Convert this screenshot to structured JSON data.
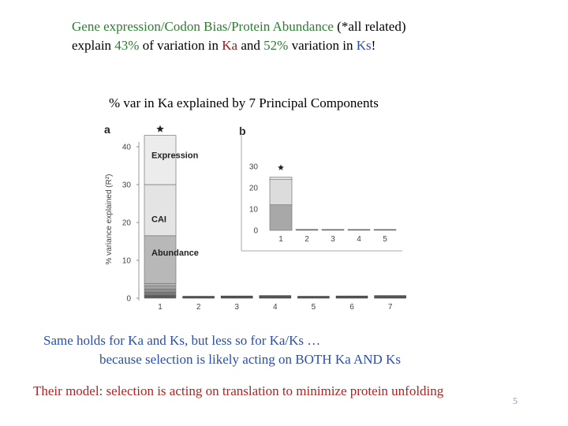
{
  "slide": {
    "line1": {
      "a": "Gene expression/Codon Bias/Protein Abundance",
      "b": " (*all related)"
    },
    "line2": {
      "a": "explain ",
      "b": "43%",
      "c": " of variation in ",
      "d": "Ka",
      "e": " and ",
      "f": "52%",
      "g": " variation in ",
      "h": "Ks",
      "i": "!"
    },
    "chart_heading": "% var in Ka explained by 7 Principal Components",
    "bottom1": "Same holds for Ka and Ks, but less so for Ka/Ks …",
    "bottom2": "because selection is likely acting on BOTH Ka AND Ks",
    "conclusion": "Their model:  selection is acting on translation to minimize protein unfolding",
    "page_number": "5",
    "colors": {
      "green": "#2e7d32",
      "blue": "#2b4fa8",
      "darkred": "#8b1a1a",
      "red": "#b22222"
    }
  },
  "chart_data": [
    {
      "type": "bar",
      "panel_label": "a",
      "ylabel": "% variance explained (R²)",
      "ylim": [
        0,
        40
      ],
      "yticks": [
        "0",
        "10",
        "20",
        "30",
        "40"
      ],
      "categories": [
        "1",
        "2",
        "3",
        "4",
        "5",
        "6",
        "7"
      ],
      "values": [
        43,
        0.5,
        0.6,
        0.7,
        0.5,
        0.6,
        0.7
      ],
      "star_on": "1",
      "stack_pc1": [
        {
          "name": "Abundance",
          "value": 16.5,
          "color": "#b8b8b8"
        },
        {
          "name": "CAI",
          "value": 13.5,
          "color": "#e4e4e4"
        },
        {
          "name": "Expression",
          "value": 13,
          "color": "#ececec"
        }
      ],
      "bottom_bands": [
        0.8,
        0.8,
        0.8,
        0.8,
        0.7
      ],
      "bottom_band_colors": [
        "#5a5a5a",
        "#7a7a7a",
        "#8f8f8f",
        "#a3a3a3",
        "#b0b0b0"
      ]
    },
    {
      "type": "bar",
      "panel_label": "b",
      "ylim": [
        0,
        35
      ],
      "yticks": [
        "0",
        "10",
        "20",
        "30"
      ],
      "categories": [
        "1",
        "2",
        "3",
        "4",
        "5"
      ],
      "values": [
        25,
        0.5,
        0.4,
        0.4,
        0.4
      ],
      "star_on": "1",
      "stack_pc1": [
        {
          "name": "",
          "value": 12,
          "color": "#a8a8a8"
        },
        {
          "name": "",
          "value": 12,
          "color": "#dcdcdc"
        },
        {
          "name": "",
          "value": 1,
          "color": "#ececec"
        }
      ]
    }
  ]
}
